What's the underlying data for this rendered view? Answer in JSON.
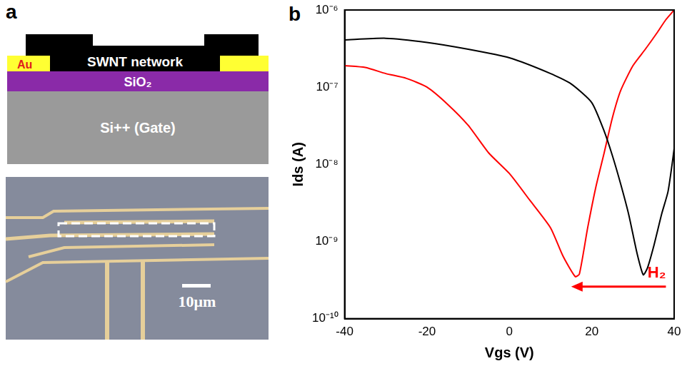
{
  "panel_a": {
    "letter": "a",
    "schematic": {
      "electrode_label": "Au",
      "network_label": "SWNT network",
      "oxide_label": "SiO₂",
      "gate_label": "Si++ (Gate)"
    },
    "micrograph": {
      "scale_bar": "10μm"
    }
  },
  "chart_data": {
    "letter": "b",
    "type": "line",
    "x_label": "Vgs (V)",
    "y_label": "Ids (A)",
    "xlim": [
      -40,
      40
    ],
    "xticks": [
      -40,
      -20,
      0,
      20,
      40
    ],
    "ylim": [
      1e-10,
      1e-06
    ],
    "yticks": [
      {
        "value": 1e-10,
        "label": "10⁻¹⁰"
      },
      {
        "value": 1e-09,
        "label": "10⁻⁹"
      },
      {
        "value": 1e-08,
        "label": "10⁻⁸"
      },
      {
        "value": 1e-07,
        "label": "10⁻⁷"
      },
      {
        "value": 1e-06,
        "label": "10⁻⁶"
      }
    ],
    "log": "y",
    "grid": false,
    "series": [
      {
        "color": "#000000",
        "x": [
          -40,
          -30,
          -20,
          -10,
          0,
          10,
          15,
          20,
          23,
          25,
          27,
          29,
          31,
          32.5,
          33.5,
          35,
          37,
          38.5,
          39.5,
          40
        ],
        "values": [
          4.1e-07,
          4.3e-07,
          3.8e-07,
          3.1e-07,
          2.4e-07,
          1.5e-07,
          1.1e-07,
          6.3e-08,
          2.7e-08,
          1.3e-08,
          5.6e-09,
          2.2e-09,
          7e-10,
          3.7e-10,
          4.5e-10,
          8.5e-10,
          2.3e-09,
          4.4e-09,
          1e-08,
          1.6e-08
        ]
      },
      {
        "color": "#ff0000",
        "x": [
          -40,
          -35,
          -30,
          -25,
          -20,
          -15,
          -10,
          -5,
          0,
          5,
          10,
          13,
          16,
          17,
          19,
          21,
          23,
          25,
          27,
          30,
          33,
          36,
          38,
          40
        ],
        "values": [
          1.9e-07,
          1.8e-07,
          1.5e-07,
          1.3e-07,
          1e-07,
          6e-08,
          3.2e-08,
          1.4e-08,
          7.6e-09,
          3.4e-09,
          1.5e-09,
          6.5e-10,
          3.5e-10,
          3.8e-10,
          1.5e-09,
          5.1e-09,
          1.4e-08,
          4e-08,
          9e-08,
          1.9e-07,
          3.1e-07,
          5.2e-07,
          7.5e-07,
          1e-06
        ]
      }
    ],
    "annotation": {
      "text": "H₂",
      "color": "#ff0000",
      "from": [
        38,
        2.6e-10
      ],
      "to": [
        15,
        2.6e-10
      ]
    }
  }
}
